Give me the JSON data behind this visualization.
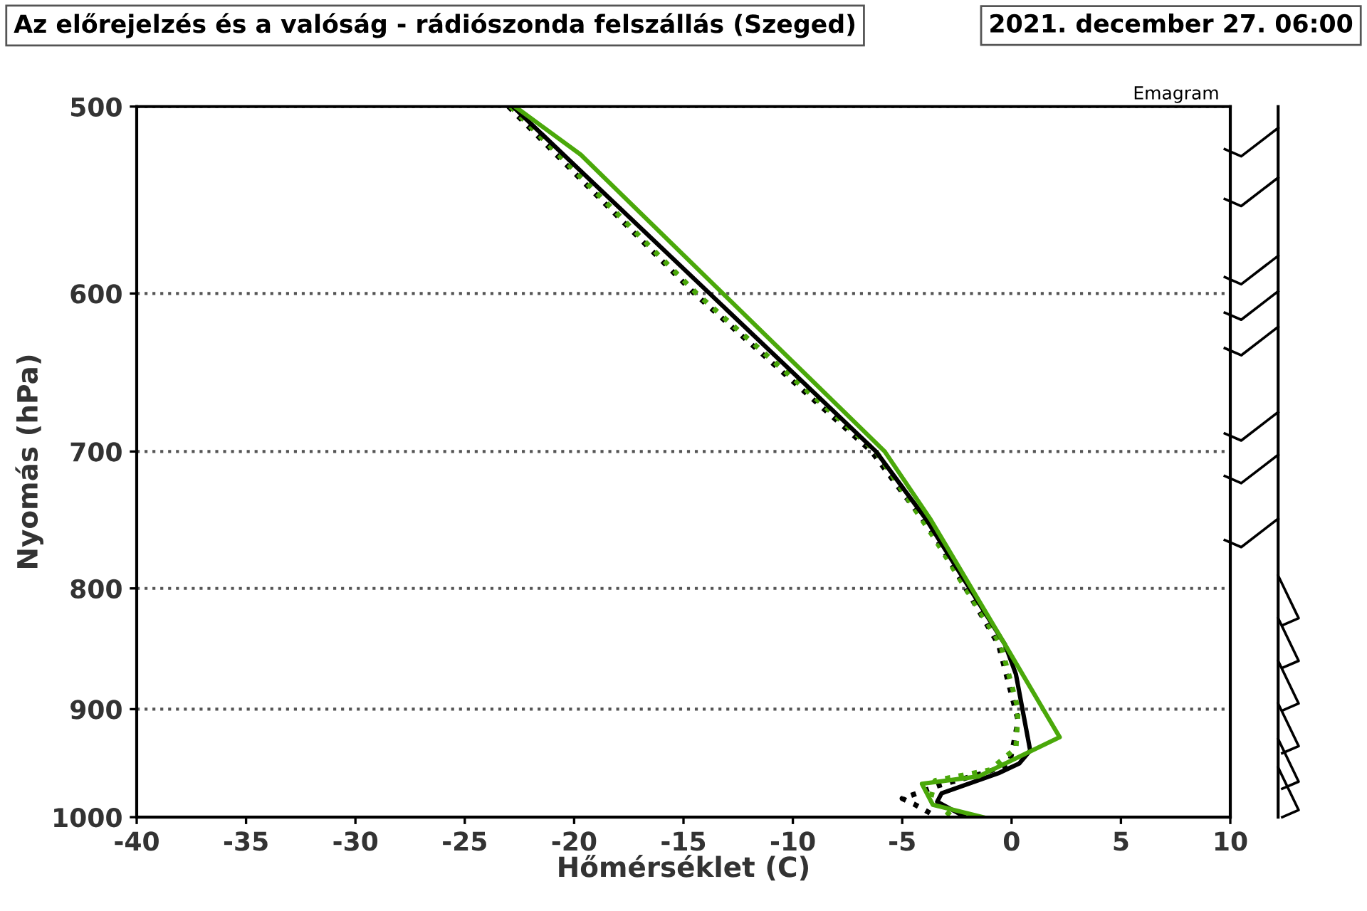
{
  "chart_data": {
    "type": "line",
    "title": "Az előrejelzés és a valóság - rádiószonda felszállás (Szeged)",
    "subtitle": "2021. december 27. 06:00",
    "xlabel": "Hőmérséklet (C)",
    "ylabel": "Nyomás (hPa)",
    "annotations": [
      "Emagram"
    ],
    "log": "y",
    "xlim": [
      -40,
      10
    ],
    "xticks": [
      -40,
      -35,
      -30,
      -25,
      -20,
      -15,
      -10,
      -5,
      0,
      5,
      10
    ],
    "ylim": [
      1000,
      500
    ],
    "yticks": [
      500,
      600,
      700,
      800,
      900,
      1000
    ],
    "grid": "y",
    "marker": "none",
    "series": [
      {
        "color": "#000000",
        "line_style": "dotted",
        "x": [
          -23.0,
          -14.5,
          -6.4,
          -3.5,
          -0.6,
          0.3,
          -0.1,
          -1.3,
          -3.4,
          -5.0,
          -4.4,
          -3.4
        ],
        "values": [
          500,
          600,
          700,
          760,
          845,
          910,
          950,
          958,
          970,
          982,
          988,
          1000
        ]
      },
      {
        "color": "#4aa80a",
        "line_style": "dotted",
        "x": [
          -22.9,
          -14.4,
          -6.2,
          -3.6,
          -0.5,
          0.3,
          0.2,
          -1.0,
          -3.5,
          -3.7,
          -2.8
        ],
        "values": [
          500,
          600,
          700,
          760,
          845,
          900,
          935,
          955,
          965,
          982,
          998
        ]
      },
      {
        "color": "#000000",
        "line_style": "solid",
        "x": [
          -22.8,
          -6.2,
          -3.9,
          -0.3,
          0.2,
          0.85,
          0.35,
          -0.6,
          -3.2,
          -3.4,
          -2.1
        ],
        "values": [
          500,
          700,
          748,
          845,
          870,
          937,
          949,
          958,
          977,
          985,
          1000
        ]
      },
      {
        "color": "#4aa80a",
        "line_style": "solid",
        "x": [
          -22.7,
          -19.7,
          -5.8,
          -3.7,
          -0.3,
          2.2,
          -1.5,
          -4.1,
          -3.6,
          -1.3
        ],
        "values": [
          500,
          524,
          700,
          748,
          845,
          925,
          961,
          968,
          988,
          1000
        ]
      }
    ]
  }
}
